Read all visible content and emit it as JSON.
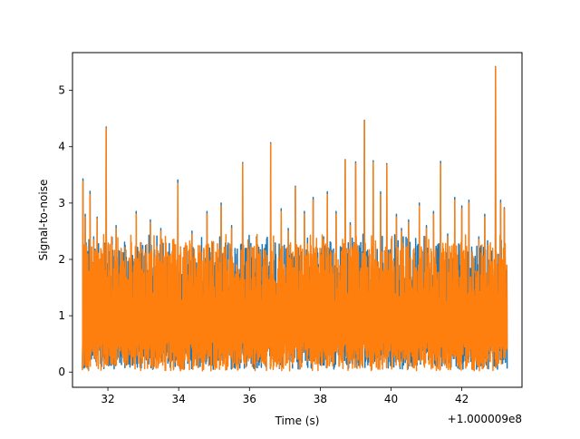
{
  "chart_data": {
    "type": "line",
    "title": "",
    "xlabel": "Time (s)",
    "ylabel": "Signal-to-noise",
    "x_offset_label": "+1.000009e8",
    "xlim": [
      31.0,
      43.7
    ],
    "ylim": [
      -0.27,
      5.67
    ],
    "x_ticks": [
      32,
      34,
      36,
      38,
      40,
      42
    ],
    "x_tick_labels": [
      "32",
      "34",
      "36",
      "38",
      "40",
      "42"
    ],
    "y_ticks": [
      0,
      1,
      2,
      3,
      4,
      5
    ],
    "y_tick_labels": [
      "0",
      "1",
      "2",
      "3",
      "4",
      "5"
    ],
    "grid": false,
    "legend": "none",
    "series": [
      {
        "color": "#1f77b4",
        "x": [
          31.3,
          31.36,
          31.5,
          31.6,
          31.7,
          31.95,
          32.23,
          32.8,
          33.2,
          33.5,
          33.98,
          34.38,
          34.8,
          35.2,
          35.5,
          35.81,
          36.2,
          36.6,
          36.9,
          37.1,
          37.3,
          37.55,
          37.8,
          38.1,
          38.2,
          38.45,
          38.7,
          38.85,
          39.0,
          39.25,
          39.5,
          39.7,
          39.88,
          40.15,
          40.3,
          40.5,
          40.8,
          41.0,
          41.2,
          41.4,
          41.6,
          41.8,
          42.0,
          42.2,
          42.48,
          42.65,
          42.95,
          43.1,
          43.2
        ],
        "peaks": [
          3.43,
          2.8,
          3.21,
          2.4,
          2.75,
          4.35,
          2.6,
          2.85,
          2.7,
          2.55,
          3.41,
          2.5,
          2.85,
          3.0,
          2.6,
          3.72,
          2.4,
          4.07,
          2.9,
          2.55,
          3.3,
          2.85,
          3.1,
          2.4,
          3.2,
          2.85,
          3.77,
          2.65,
          3.73,
          4.47,
          3.75,
          3.2,
          3.7,
          2.8,
          2.55,
          2.7,
          3.0,
          2.6,
          2.85,
          3.74,
          2.45,
          3.1,
          2.95,
          3.05,
          2.4,
          2.8,
          5.42,
          3.05,
          2.92
        ],
        "trough_min": 0.05,
        "range_x": [
          31.28,
          43.28
        ]
      },
      {
        "color": "#ff7f0e",
        "x": [
          31.3,
          31.36,
          31.5,
          31.6,
          31.7,
          31.95,
          32.23,
          32.8,
          33.2,
          33.5,
          33.98,
          34.38,
          34.8,
          35.2,
          35.5,
          35.81,
          36.2,
          36.6,
          36.9,
          37.1,
          37.3,
          37.55,
          37.8,
          38.1,
          38.2,
          38.45,
          38.7,
          38.85,
          39.0,
          39.25,
          39.5,
          39.7,
          39.88,
          40.15,
          40.3,
          40.5,
          40.8,
          41.0,
          41.2,
          41.4,
          41.6,
          41.8,
          42.0,
          42.2,
          42.48,
          42.65,
          42.95,
          43.1,
          43.2
        ],
        "peaks": [
          3.38,
          2.75,
          3.15,
          2.35,
          2.72,
          4.33,
          2.55,
          2.8,
          2.65,
          2.5,
          3.35,
          2.45,
          2.8,
          2.95,
          2.55,
          3.7,
          2.35,
          4.05,
          2.85,
          2.5,
          3.28,
          2.8,
          3.05,
          2.35,
          3.15,
          2.8,
          3.76,
          2.6,
          3.7,
          4.46,
          3.72,
          3.15,
          3.68,
          2.75,
          2.5,
          2.65,
          2.95,
          2.55,
          2.8,
          3.7,
          2.4,
          3.05,
          2.9,
          3.0,
          2.35,
          2.75,
          5.41,
          3.0,
          2.9
        ],
        "trough_min": 0.02,
        "range_x": [
          31.28,
          43.28
        ]
      }
    ]
  }
}
